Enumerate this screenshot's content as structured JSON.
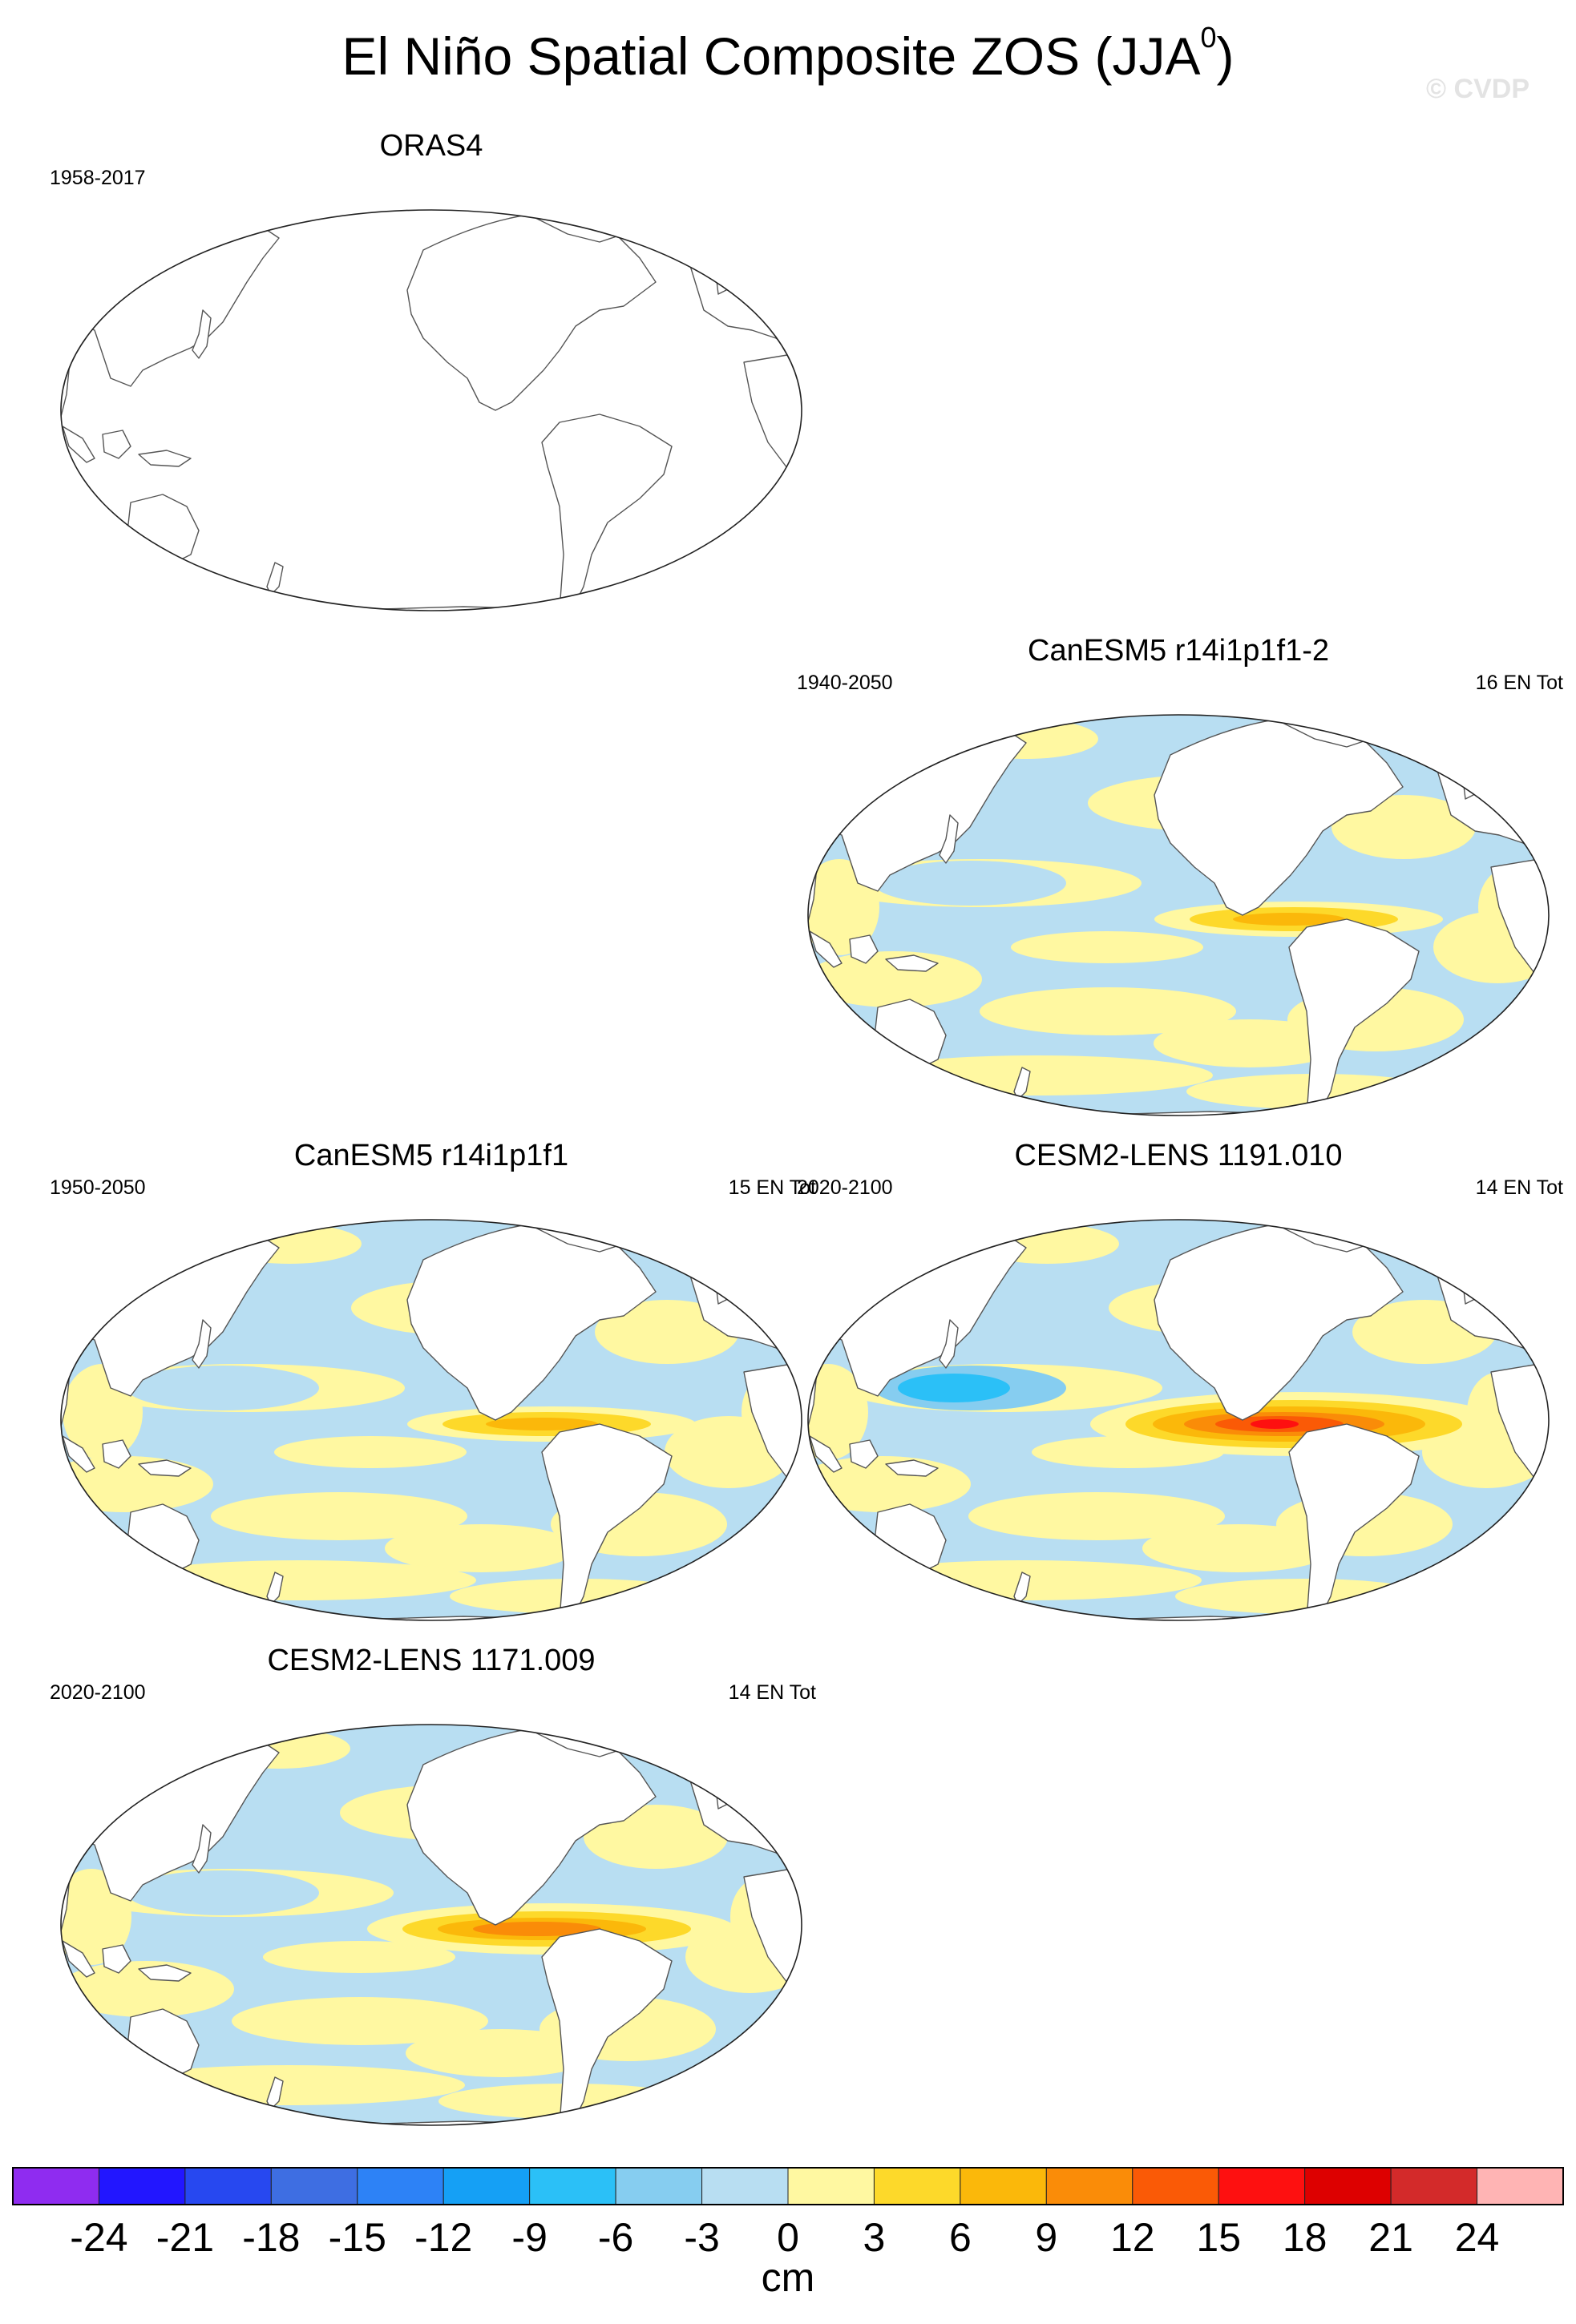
{
  "title": "El Niño Spatial Composite ZOS (JJA",
  "title_sup": "0",
  "title_close": ")",
  "watermark": "© CVDP",
  "panels": [
    {
      "id": "oras4",
      "title": "ORAS4",
      "years": "1958-2017",
      "count": "",
      "variant": "obs"
    },
    {
      "id": "canesm5-2",
      "title": "CanESM5 r14i1p1f1-2",
      "years": "1940-2050",
      "count": "16 EN Tot",
      "variant": "weak"
    },
    {
      "id": "canesm5",
      "title": "CanESM5 r14i1p1f1",
      "years": "1950-2050",
      "count": "15 EN Tot",
      "variant": "weak"
    },
    {
      "id": "cesm2-1191",
      "title": "CESM2-LENS 1191.010",
      "years": "2020-2100",
      "count": "14 EN Tot",
      "variant": "strong"
    },
    {
      "id": "cesm2-1171",
      "title": "CESM2-LENS 1171.009",
      "years": "2020-2100",
      "count": "14 EN Tot",
      "variant": "medium"
    }
  ],
  "colors": {
    "land": "#ffffff",
    "coast": "#555555",
    "levels": [
      "#8f2cf0",
      "#2216ff",
      "#2748f0",
      "#3e6ee2",
      "#2d82f6",
      "#15a0f5",
      "#2bc0f7",
      "#86cdf0",
      "#b8def2",
      "#fff8a1",
      "#fdd92a",
      "#fbb80a",
      "#fa8c08",
      "#fa5a06",
      "#fe1010",
      "#dd0000",
      "#d32a2a",
      "#ffb4b4"
    ]
  },
  "chart_data": {
    "type": "heatmap",
    "description_units": "cm",
    "colorbar": {
      "levels": [
        -24,
        -21,
        -18,
        -15,
        -12,
        -9,
        -6,
        -3,
        0,
        3,
        6,
        9,
        12,
        15,
        18,
        21,
        24
      ],
      "tick_labels": [
        "-24",
        "-21",
        "-18",
        "-15",
        "-12",
        "-9",
        "-6",
        "-3",
        "0",
        "3",
        "6",
        "9",
        "12",
        "15",
        "18",
        "21",
        "24"
      ],
      "label": "cm"
    }
  }
}
